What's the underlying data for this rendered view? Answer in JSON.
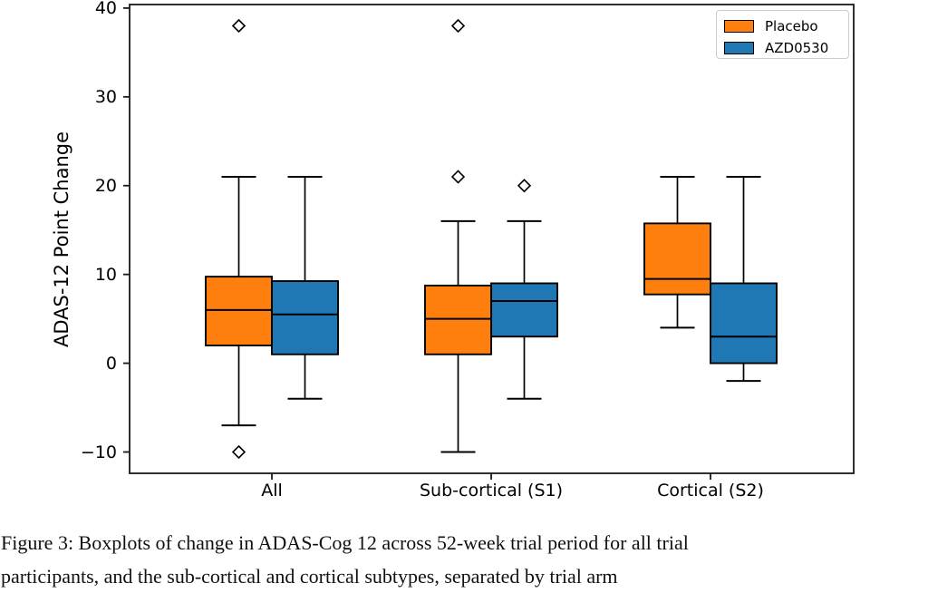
{
  "figure": {
    "caption_line1": "Figure 3: Boxplots of change in ADAS-Cog 12 across 52-week trial period for all trial",
    "caption_line2": "participants, and the sub-cortical and cortical subtypes, separated by trial arm"
  },
  "chart_data": {
    "type": "boxplot",
    "title": "",
    "xlabel": "",
    "ylabel": "ADAS-12 Point Change",
    "ylim": [
      -12.4,
      40.4
    ],
    "yticks": [
      40,
      30,
      20,
      10,
      0,
      -10
    ],
    "ytick_labels": [
      "40",
      "30",
      "20",
      "10",
      "0",
      "−10"
    ],
    "categories": [
      "All",
      "Sub-cortical (S1)",
      "Cortical (S2)"
    ],
    "grid": false,
    "legend": {
      "position": "upper right",
      "entries": [
        {
          "label": "Placebo",
          "color": "#ff7f0e"
        },
        {
          "label": "AZD0530",
          "color": "#1f77b4"
        }
      ]
    },
    "outlier_marker": "diamond",
    "series": [
      {
        "name": "Placebo",
        "color": "#ff7f0e",
        "boxes": [
          {
            "category": "All",
            "whislo": -7,
            "q1": 2,
            "med": 6,
            "q3": 9.75,
            "whishi": 21,
            "outliers": [
              38,
              -10
            ]
          },
          {
            "category": "Sub-cortical (S1)",
            "whislo": -10,
            "q1": 1,
            "med": 5,
            "q3": 8.75,
            "whishi": 16,
            "outliers": [
              38,
              21
            ]
          },
          {
            "category": "Cortical (S2)",
            "whislo": 4,
            "q1": 7.75,
            "med": 9.5,
            "q3": 15.75,
            "whishi": 21,
            "outliers": []
          }
        ]
      },
      {
        "name": "AZD0530",
        "color": "#1f77b4",
        "boxes": [
          {
            "category": "All",
            "whislo": -4,
            "q1": 1,
            "med": 5.5,
            "q3": 9.25,
            "whishi": 21,
            "outliers": []
          },
          {
            "category": "Sub-cortical (S1)",
            "whislo": -4,
            "q1": 3,
            "med": 7,
            "q3": 9,
            "whishi": 16,
            "outliers": [
              20
            ]
          },
          {
            "category": "Cortical (S2)",
            "whislo": -2,
            "q1": 0,
            "med": 3,
            "q3": 9,
            "whishi": 21,
            "outliers": []
          }
        ]
      }
    ]
  }
}
